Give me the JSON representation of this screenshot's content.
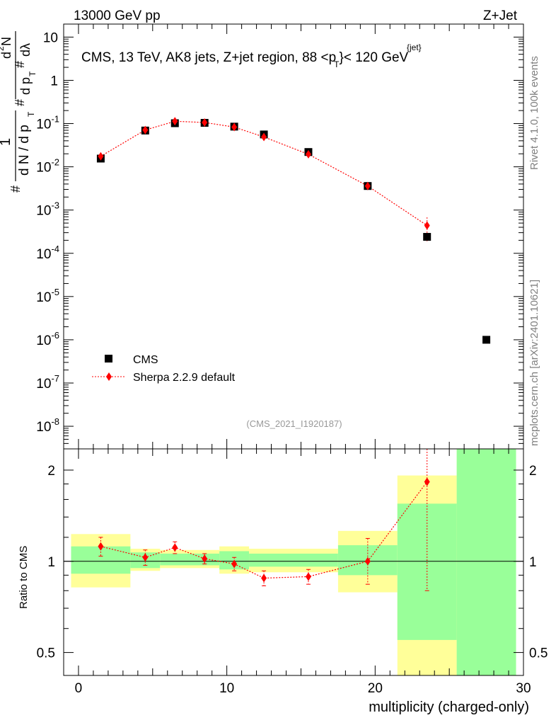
{
  "header": {
    "energy": "13000 GeV pp",
    "process": "Z+Jet"
  },
  "plot_title": {
    "main": "CMS, 13 TeV, AK8 jets, Z+jet region, 88 <p",
    "sub": "T",
    "sup": "{jet}",
    "tail": "}< 120 GeV"
  },
  "analysis_label": "(CMS_2021_I1920187)",
  "side_labels": {
    "rivet": "Rivet 4.1.0,  100k events",
    "mcplots": "mcplots.cern.ch [arXiv:2401.10621]"
  },
  "colors": {
    "mc": "#ff0000",
    "data": "#000000",
    "band_inner": "#99ff99",
    "band_outer": "#ffff99"
  },
  "chart_data": [
    {
      "type": "scatter",
      "panel": "main",
      "xlabel": "multiplicity (charged-only)",
      "ylabel_parts": [
        "#",
        "1",
        "d N / d p",
        "T",
        "#",
        "d",
        "2",
        "N",
        "d p",
        "T",
        "dλ"
      ],
      "yscale": "log",
      "xlim": [
        -1,
        30
      ],
      "ylim": [
        3e-09,
        20
      ],
      "yticks": [
        {
          "v": 1e-08,
          "base": "10",
          "exp": "-8"
        },
        {
          "v": 1e-07,
          "base": "10",
          "exp": "-7"
        },
        {
          "v": 1e-06,
          "base": "10",
          "exp": "-6"
        },
        {
          "v": 1e-05,
          "base": "10",
          "exp": "-5"
        },
        {
          "v": 0.0001,
          "base": "10",
          "exp": "-4"
        },
        {
          "v": 0.001,
          "base": "10",
          "exp": "-3"
        },
        {
          "v": 0.01,
          "base": "10",
          "exp": "-2"
        },
        {
          "v": 0.1,
          "base": "10",
          "exp": "-1"
        },
        {
          "v": 1,
          "base": "1",
          "exp": ""
        },
        {
          "v": 10,
          "base": "10",
          "exp": ""
        }
      ],
      "legend": [
        {
          "name": "CMS",
          "marker": "square"
        },
        {
          "name": "Sherpa 2.2.9 default",
          "marker": "diamond"
        }
      ],
      "series": [
        {
          "name": "CMS",
          "points": [
            {
              "x": 1.5,
              "y": 0.0155
            },
            {
              "x": 4.5,
              "y": 0.069
            },
            {
              "x": 6.5,
              "y": 0.102
            },
            {
              "x": 8.5,
              "y": 0.104
            },
            {
              "x": 10.5,
              "y": 0.085
            },
            {
              "x": 12.5,
              "y": 0.056
            },
            {
              "x": 15.5,
              "y": 0.022
            },
            {
              "x": 19.5,
              "y": 0.0036
            },
            {
              "x": 23.5,
              "y": 0.00024
            },
            {
              "x": 27.5,
              "y": 1e-06
            }
          ]
        },
        {
          "name": "Sherpa 2.2.9 default",
          "points": [
            {
              "x": 1.5,
              "y": 0.0175,
              "lo": 0.0162,
              "hi": 0.0188
            },
            {
              "x": 4.5,
              "y": 0.071,
              "lo": 0.068,
              "hi": 0.074
            },
            {
              "x": 6.5,
              "y": 0.113,
              "lo": 0.108,
              "hi": 0.118
            },
            {
              "x": 8.5,
              "y": 0.106,
              "lo": 0.102,
              "hi": 0.11
            },
            {
              "x": 10.5,
              "y": 0.083,
              "lo": 0.08,
              "hi": 0.086
            },
            {
              "x": 12.5,
              "y": 0.049,
              "lo": 0.046,
              "hi": 0.052
            },
            {
              "x": 15.5,
              "y": 0.0195,
              "lo": 0.0185,
              "hi": 0.0205
            },
            {
              "x": 19.5,
              "y": 0.0036,
              "lo": 0.0031,
              "hi": 0.0041
            },
            {
              "x": 23.5,
              "y": 0.00044,
              "lo": 0.00019,
              "hi": 0.00068
            }
          ]
        }
      ]
    },
    {
      "type": "scatter",
      "panel": "ratio",
      "xlabel": "multiplicity (charged-only)",
      "ylabel": "Ratio to CMS",
      "yscale": "log",
      "xlim": [
        -1,
        30
      ],
      "ylim": [
        0.42,
        2.35
      ],
      "xticks": [
        0,
        10,
        20,
        30
      ],
      "yticks": [
        {
          "v": 0.5,
          "label": "0.5"
        },
        {
          "v": 1,
          "label": "1"
        },
        {
          "v": 2,
          "label": "2"
        }
      ],
      "bands": [
        {
          "x0": -0.5,
          "x1": 3.5,
          "outer_lo": 0.82,
          "outer_hi": 1.23,
          "inner_lo": 0.91,
          "inner_hi": 1.12
        },
        {
          "x0": 3.5,
          "x1": 5.5,
          "outer_lo": 0.93,
          "outer_hi": 1.1,
          "inner_lo": 0.95,
          "inner_hi": 1.07
        },
        {
          "x0": 5.5,
          "x1": 9.5,
          "outer_lo": 0.95,
          "outer_hi": 1.09,
          "inner_lo": 0.97,
          "inner_hi": 1.06
        },
        {
          "x0": 9.5,
          "x1": 11.5,
          "outer_lo": 0.91,
          "outer_hi": 1.12,
          "inner_lo": 0.94,
          "inner_hi": 1.08
        },
        {
          "x0": 11.5,
          "x1": 17.5,
          "outer_lo": 0.92,
          "outer_hi": 1.1,
          "inner_lo": 0.96,
          "inner_hi": 1.06
        },
        {
          "x0": 17.5,
          "x1": 21.5,
          "outer_lo": 0.79,
          "outer_hi": 1.26,
          "inner_lo": 0.9,
          "inner_hi": 1.13
        },
        {
          "x0": 21.5,
          "x1": 25.5,
          "outer_lo": 0.3,
          "outer_hi": 1.92,
          "inner_lo": 0.55,
          "inner_hi": 1.55
        },
        {
          "x0": 25.5,
          "x1": 29.5,
          "outer_lo": 0.3,
          "outer_hi": 3.0,
          "inner_lo": 0.3,
          "inner_hi": 3.0
        }
      ],
      "series": [
        {
          "name": "Sherpa 2.2.9 default",
          "points": [
            {
              "x": 1.5,
              "y": 1.12,
              "lo": 1.04,
              "hi": 1.2
            },
            {
              "x": 4.5,
              "y": 1.03,
              "lo": 0.97,
              "hi": 1.09
            },
            {
              "x": 6.5,
              "y": 1.11,
              "lo": 1.06,
              "hi": 1.16
            },
            {
              "x": 8.5,
              "y": 1.02,
              "lo": 0.98,
              "hi": 1.06
            },
            {
              "x": 10.5,
              "y": 0.98,
              "lo": 0.93,
              "hi": 1.03
            },
            {
              "x": 12.5,
              "y": 0.88,
              "lo": 0.83,
              "hi": 0.93
            },
            {
              "x": 15.5,
              "y": 0.89,
              "lo": 0.84,
              "hi": 0.94
            },
            {
              "x": 19.5,
              "y": 1.0,
              "lo": 0.84,
              "hi": 1.19
            },
            {
              "x": 23.5,
              "y": 1.83,
              "lo": 0.8,
              "hi": 2.5
            }
          ]
        }
      ]
    }
  ]
}
